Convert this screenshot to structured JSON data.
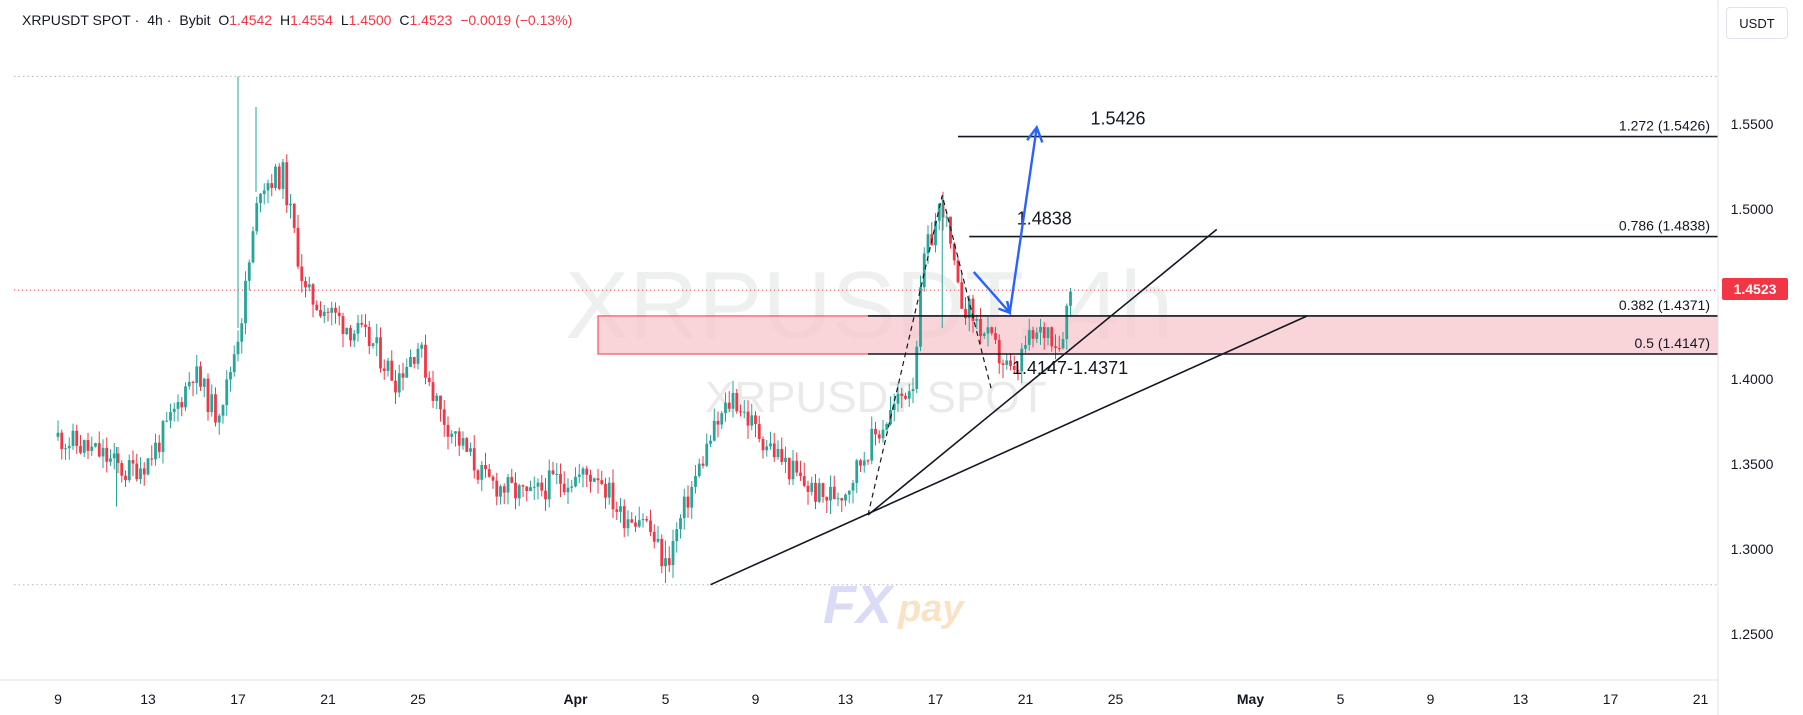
{
  "header": {
    "symbol": "XRPUSDT SPOT",
    "interval": "4h",
    "exchange": "Bybit",
    "o_label": "O",
    "o_value": "1.4542",
    "h_label": "H",
    "h_value": "1.4554",
    "l_label": "L",
    "l_value": "1.4500",
    "c_label": "C",
    "c_value": "1.4523",
    "change": "−0.0019 (−0.13%)"
  },
  "currency_button": "USDT",
  "last_price": "1.4523",
  "watermark": {
    "main": "XRPUSDT, 4h",
    "sub": "XRPUSDT SPOT",
    "logo_fx": "FX",
    "logo_pay": "pay"
  },
  "colors": {
    "up": "#26a69a",
    "down": "#f23645",
    "zone": "#f7c6cc",
    "arrow": "#2962ff",
    "grid_dots": "#b2b5be"
  },
  "chart_data": {
    "type": "candlestick",
    "title": "XRPUSDT SPOT · 4h · Bybit",
    "ylim": [
      1.22,
      1.58
    ],
    "y_ticks": [
      "1.5500",
      "1.5000",
      "1.4500",
      "1.4000",
      "1.3500",
      "1.3000",
      "1.2500"
    ],
    "x_ticks": [
      "9",
      "13",
      "17",
      "21",
      "25",
      "Apr",
      "5",
      "9",
      "13",
      "17",
      "21",
      "25",
      "May",
      "5",
      "9",
      "13",
      "17",
      "21"
    ],
    "x_tick_days": [
      0,
      4,
      8,
      12,
      16,
      23,
      27,
      31,
      35,
      39,
      43,
      47,
      53,
      57,
      61,
      65,
      69,
      73
    ],
    "close_path": [
      [
        0,
        1.366
      ],
      [
        2,
        1.355
      ],
      [
        3,
        1.345
      ],
      [
        4,
        1.352
      ],
      [
        5,
        1.375
      ],
      [
        6,
        1.405
      ],
      [
        7,
        1.38
      ],
      [
        7.5,
        1.395
      ],
      [
        8.2,
        1.44
      ],
      [
        9,
        1.515
      ],
      [
        10,
        1.52
      ],
      [
        11,
        1.45
      ],
      [
        12,
        1.44
      ],
      [
        13,
        1.43
      ],
      [
        14,
        1.42
      ],
      [
        15,
        1.4
      ],
      [
        16,
        1.42
      ],
      [
        17,
        1.38
      ],
      [
        18,
        1.36
      ],
      [
        19,
        1.34
      ],
      [
        20,
        1.335
      ],
      [
        21,
        1.33
      ],
      [
        22,
        1.34
      ],
      [
        23,
        1.342
      ],
      [
        24,
        1.345
      ],
      [
        25,
        1.32
      ],
      [
        26,
        1.32
      ],
      [
        27,
        1.29
      ],
      [
        28,
        1.33
      ],
      [
        29,
        1.365
      ],
      [
        30,
        1.39
      ],
      [
        31,
        1.37
      ],
      [
        32,
        1.355
      ],
      [
        33,
        1.34
      ],
      [
        34,
        1.33
      ],
      [
        35,
        1.335
      ],
      [
        36,
        1.36
      ],
      [
        37,
        1.38
      ],
      [
        38,
        1.4
      ],
      [
        38.5,
        1.47
      ],
      [
        39.3,
        1.505
      ],
      [
        40,
        1.45
      ],
      [
        41,
        1.43
      ],
      [
        42,
        1.41
      ],
      [
        42.5,
        1.4
      ],
      [
        43,
        1.42
      ],
      [
        44,
        1.43
      ],
      [
        44.5,
        1.42
      ],
      [
        45,
        1.452
      ]
    ],
    "wick_spikes": [
      [
        8,
        1.578,
        1.43
      ],
      [
        8.8,
        1.56,
        1.51
      ],
      [
        2.6,
        1.36,
        1.325
      ],
      [
        27,
        1.305,
        1.28
      ],
      [
        39.3,
        1.508,
        1.43
      ]
    ],
    "levels": [
      {
        "label": "1.272 (1.5426)",
        "value": 1.5426,
        "from_day": 40,
        "callout": "1.5426"
      },
      {
        "label": "0.786 (1.4838)",
        "value": 1.4838,
        "from_day": 40.5,
        "callout": "1.4838"
      },
      {
        "label": "0.382 (1.4371)",
        "value": 1.4371,
        "from_day": 36
      },
      {
        "label": "0.5 (1.4147)",
        "value": 1.4147,
        "from_day": 36
      }
    ],
    "zone": {
      "from": 1.4147,
      "to": 1.4371,
      "from_day": 24,
      "label": "1.4147-1.4371"
    },
    "trendlines": [
      {
        "p1": [
          29,
          1.279
        ],
        "p2": [
          55.5,
          1.437
        ]
      },
      {
        "p1": [
          36,
          1.32
        ],
        "p2": [
          51.5,
          1.488
        ]
      }
    ],
    "fib_anchor_path": [
      [
        36,
        1.32
      ],
      [
        39.3,
        1.508
      ],
      [
        41.5,
        1.393
      ]
    ],
    "projection_arrow": [
      [
        40.7,
        1.463
      ],
      [
        42.3,
        1.439
      ],
      [
        43.5,
        1.548
      ]
    ],
    "dotted_levels": [
      1.578,
      1.279
    ],
    "last_price_value": 1.4523
  }
}
